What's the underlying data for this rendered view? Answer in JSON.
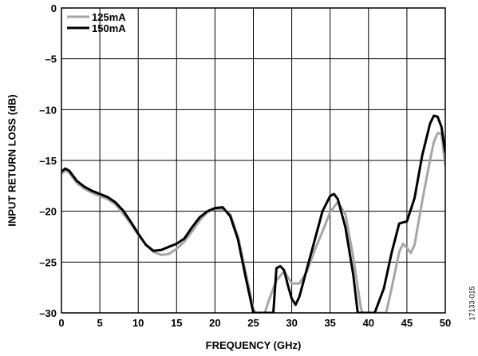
{
  "figure_id": "17133-015",
  "chart_data": {
    "type": "line",
    "title": "",
    "xlabel": "FREQUENCY (GHz)",
    "ylabel": "INPUT RETURN LOSS (dB)",
    "xlim": [
      0,
      50
    ],
    "ylim": [
      -30,
      0
    ],
    "xticks": [
      "0",
      "5",
      "10",
      "15",
      "20",
      "25",
      "30",
      "35",
      "40",
      "45",
      "50"
    ],
    "yticks": [
      "0",
      "–5",
      "–10",
      "–15",
      "–20",
      "–25",
      "–30"
    ],
    "grid": true,
    "legend_position": "top-left",
    "series": [
      {
        "name": "125mA",
        "color": "#a6a6a6",
        "x": [
          0,
          0.5,
          1,
          2,
          3,
          4,
          5,
          6,
          7,
          8,
          9,
          10,
          11,
          12,
          13,
          14,
          15,
          16,
          17,
          18,
          19,
          20,
          21,
          22,
          23,
          24,
          25,
          25.3,
          26.5,
          27,
          28,
          29,
          30,
          31,
          32,
          33,
          34,
          35,
          36,
          37,
          38,
          39,
          39.2,
          42.3,
          43,
          44,
          44.5,
          45,
          45.5,
          46,
          47,
          48,
          48.5,
          49,
          49.5,
          50
        ],
        "y": [
          -16.3,
          -16.0,
          -16.2,
          -17.2,
          -17.8,
          -18.2,
          -18.5,
          -18.8,
          -19.3,
          -20.2,
          -21.2,
          -22.3,
          -23.3,
          -24.0,
          -24.3,
          -24.2,
          -23.7,
          -23.0,
          -22.0,
          -20.9,
          -20.1,
          -19.8,
          -19.8,
          -20.3,
          -22.5,
          -26.0,
          -29.6,
          -30,
          -30,
          -28.8,
          -26.8,
          -25.9,
          -27.1,
          -27.1,
          -25.9,
          -23.8,
          -22.0,
          -20.1,
          -19.1,
          -20.3,
          -24.5,
          -29.5,
          -30,
          -30,
          -27.6,
          -24.0,
          -23.2,
          -23.6,
          -24.1,
          -23.3,
          -19.0,
          -15.0,
          -13.2,
          -12.3,
          -12.4,
          -15.5
        ]
      },
      {
        "name": "150mA",
        "color": "#000000",
        "x": [
          0,
          0.5,
          1,
          2,
          3,
          4,
          5,
          6,
          7,
          8,
          9,
          10,
          11,
          12,
          13,
          14,
          15,
          16,
          17,
          18,
          19,
          20,
          21,
          22,
          23,
          24,
          25,
          25.5,
          27.6,
          28,
          28.5,
          29,
          29.5,
          30,
          30.5,
          31,
          32,
          33,
          34,
          35,
          35.5,
          36,
          37,
          38,
          38.6,
          40.8,
          42,
          43,
          44,
          45,
          46,
          47,
          48,
          48.5,
          49,
          49.5,
          50
        ],
        "y": [
          -16.1,
          -15.8,
          -16.0,
          -17.0,
          -17.6,
          -18.0,
          -18.3,
          -18.6,
          -19.1,
          -19.9,
          -21.0,
          -22.2,
          -23.3,
          -23.9,
          -23.8,
          -23.5,
          -23.2,
          -22.7,
          -21.6,
          -20.6,
          -20.0,
          -19.7,
          -19.6,
          -20.5,
          -22.8,
          -26.5,
          -30,
          -30,
          -30,
          -25.6,
          -25.4,
          -25.8,
          -27.3,
          -28.6,
          -29.2,
          -28.4,
          -25.6,
          -22.8,
          -20.0,
          -18.5,
          -18.3,
          -18.8,
          -21.6,
          -26.2,
          -30,
          -30,
          -27.6,
          -24.1,
          -21.2,
          -21.0,
          -18.7,
          -14.5,
          -11.4,
          -10.6,
          -10.7,
          -11.7,
          -14.2
        ]
      }
    ]
  }
}
